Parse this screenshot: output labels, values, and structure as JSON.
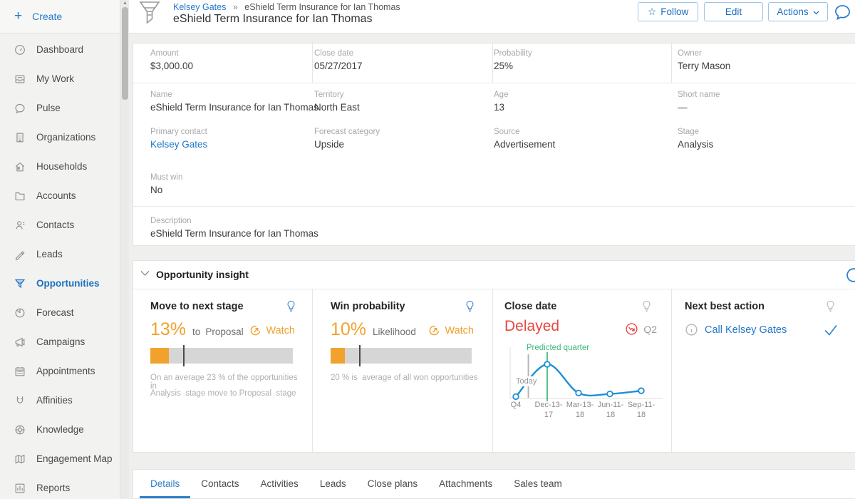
{
  "colors": {
    "accent": "#2577c8",
    "orange": "#f0a22d",
    "red": "#e8473f",
    "green": "#3cb878",
    "chart_blue": "#1f8fd6"
  },
  "sidebar": {
    "create_label": "Create",
    "items": [
      {
        "label": "Dashboard",
        "icon": "dashboard-icon"
      },
      {
        "label": "My Work",
        "icon": "my-work-icon"
      },
      {
        "label": "Pulse",
        "icon": "pulse-icon"
      },
      {
        "label": "Organizations",
        "icon": "organizations-icon"
      },
      {
        "label": "Households",
        "icon": "households-icon"
      },
      {
        "label": "Accounts",
        "icon": "accounts-icon"
      },
      {
        "label": "Contacts",
        "icon": "contacts-icon"
      },
      {
        "label": "Leads",
        "icon": "leads-icon"
      },
      {
        "label": "Opportunities",
        "icon": "opportunities-icon",
        "active": true
      },
      {
        "label": "Forecast",
        "icon": "forecast-icon"
      },
      {
        "label": "Campaigns",
        "icon": "campaigns-icon"
      },
      {
        "label": "Appointments",
        "icon": "appointments-icon"
      },
      {
        "label": "Affinities",
        "icon": "affinities-icon"
      },
      {
        "label": "Knowledge",
        "icon": "knowledge-icon"
      },
      {
        "label": "Engagement Map",
        "icon": "engagement-map-icon"
      },
      {
        "label": "Reports",
        "icon": "reports-icon"
      }
    ]
  },
  "header": {
    "breadcrumb": {
      "parent": "Kelsey Gates",
      "separator": "»",
      "current": "eShield Term Insurance for Ian Thomas"
    },
    "title": "eShield Term Insurance for Ian Thomas",
    "follow_label": "Follow",
    "follow_star": "☆",
    "edit_label": "Edit",
    "actions_label": "Actions"
  },
  "details": {
    "row1": [
      {
        "label": "Amount",
        "value": "$3,000.00"
      },
      {
        "label": "Close date",
        "value": "05/27/2017"
      },
      {
        "label": "Probability",
        "value": "25%"
      },
      {
        "label": "Owner",
        "value": "Terry Mason"
      }
    ],
    "row2": [
      {
        "label": "Name",
        "value": "eShield Term Insurance for Ian Thomas"
      },
      {
        "label": "Territory",
        "value": "North East"
      },
      {
        "label": "Age",
        "value": "13"
      },
      {
        "label": "Short name",
        "value": "—"
      }
    ],
    "row3": [
      {
        "label": "Primary contact",
        "value": "Kelsey Gates",
        "link": true
      },
      {
        "label": "Forecast category",
        "value": "Upside"
      },
      {
        "label": "Source",
        "value": "Advertisement"
      },
      {
        "label": "Stage",
        "value": "Analysis"
      }
    ],
    "must_win": {
      "label": "Must win",
      "value": "No"
    },
    "description": {
      "label": "Description",
      "value": "eShield Term Insurance for Ian Thomas"
    }
  },
  "insight": {
    "title": "Opportunity insight",
    "cards": {
      "stage": {
        "title": "Move to next stage",
        "percent": "13%",
        "percent_value": 13,
        "connector": "to",
        "target": "Proposal",
        "watch_label": "Watch",
        "benchmark_value": 23,
        "caption_line1": "On an average 23 % of the opportunities in",
        "caption_line2": "Analysis  stage move to Proposal  stage"
      },
      "probability": {
        "title": "Win probability",
        "percent": "10%",
        "percent_value": 10,
        "suffix": "Likelihood",
        "watch_label": "Watch",
        "benchmark_value": 20,
        "caption": "20 % is  average of all won opportunities"
      },
      "close_date": {
        "title": "Close date",
        "status": "Delayed",
        "quarter": "Q2",
        "xlabels": [
          "Q4",
          "Dec-13-\n17",
          "Mar-13-\n18",
          "Jun-11-\n18",
          "Sep-11-\n18"
        ],
        "chart_data": {
          "type": "line",
          "x": [
            "Q4",
            "Dec-13-17",
            "Mar-13-18",
            "Jun-11-18",
            "Sep-11-18"
          ],
          "values": [
            4,
            75,
            12,
            10,
            17
          ],
          "ylim": [
            0,
            100
          ],
          "legend": false,
          "annotations": [
            {
              "type": "vline",
              "label": "Today",
              "x_pos": 0.4
            },
            {
              "type": "vline",
              "label": "Predicted quarter",
              "x_pos": 1
            }
          ]
        }
      },
      "next_action": {
        "title": "Next best action",
        "action_label": "Call Kelsey Gates"
      }
    }
  },
  "tabs": {
    "items": [
      {
        "label": "Details",
        "active": true
      },
      {
        "label": "Contacts"
      },
      {
        "label": "Activities"
      },
      {
        "label": "Leads"
      },
      {
        "label": "Close plans"
      },
      {
        "label": "Attachments"
      },
      {
        "label": "Sales team"
      }
    ]
  }
}
